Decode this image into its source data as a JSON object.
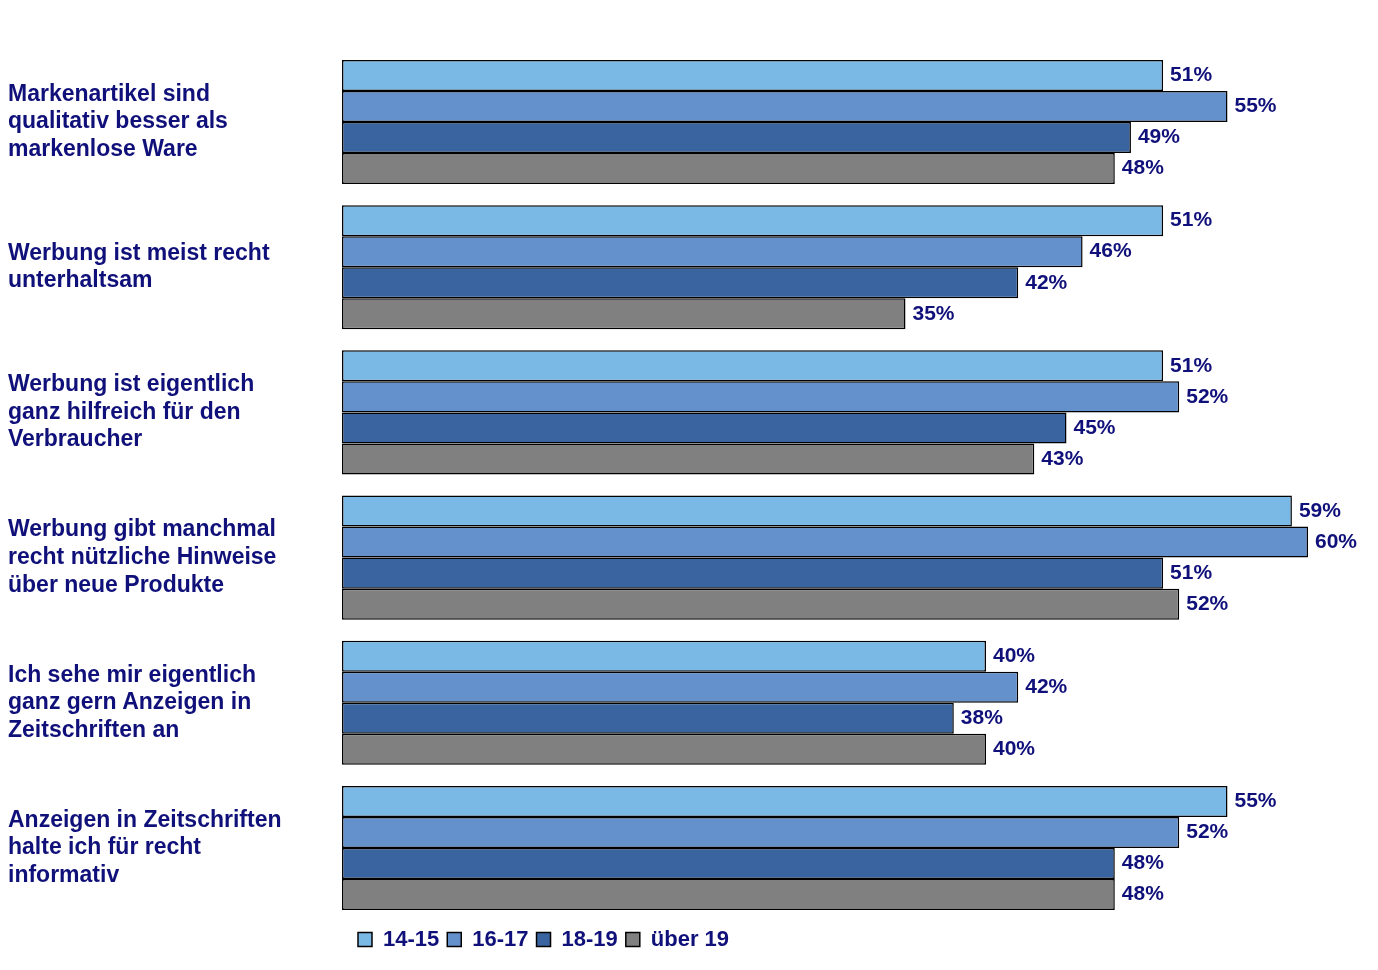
{
  "chart_data": {
    "type": "bar",
    "orientation": "horizontal",
    "categories": [
      "Markenartikel sind qualitativ besser als markenlose Ware",
      "Werbung ist meist recht unterhaltsam",
      "Werbung ist eigentlich ganz hilfreich für den Verbraucher",
      "Werbung gibt manchmal recht nützliche Hinweise über neue Produkte",
      "Ich sehe mir eigentlich ganz gern Anzeigen in Zeitschriften an",
      "Anzeigen in Zeitschriften halte ich für recht informativ"
    ],
    "series": [
      {
        "name": "14-15",
        "color": "#7ab8e6",
        "values": [
          51,
          51,
          51,
          59,
          40,
          55
        ],
        "value_labels": [
          "51%",
          "51%",
          "51%",
          "59%",
          "40%",
          "55%"
        ]
      },
      {
        "name": "16-17",
        "color": "#6490cc",
        "values": [
          55,
          46,
          52,
          60,
          42,
          52
        ],
        "value_labels": [
          "55%",
          "46%",
          "52%",
          "60%",
          "42%",
          "52%"
        ]
      },
      {
        "name": "18-19",
        "color": "#3a64a0",
        "values": [
          49,
          42,
          45,
          51,
          38,
          48
        ],
        "value_labels": [
          "49%",
          "42%",
          "45%",
          "51%",
          "38%",
          "48%"
        ]
      },
      {
        "name": "über 19",
        "color": "#808080",
        "values": [
          48,
          35,
          43,
          52,
          40,
          48
        ],
        "value_labels": [
          "48%",
          "35%",
          "43%",
          "52%",
          "40%",
          "48%"
        ]
      }
    ],
    "tick_labels": "y",
    "legend": "bottom"
  }
}
